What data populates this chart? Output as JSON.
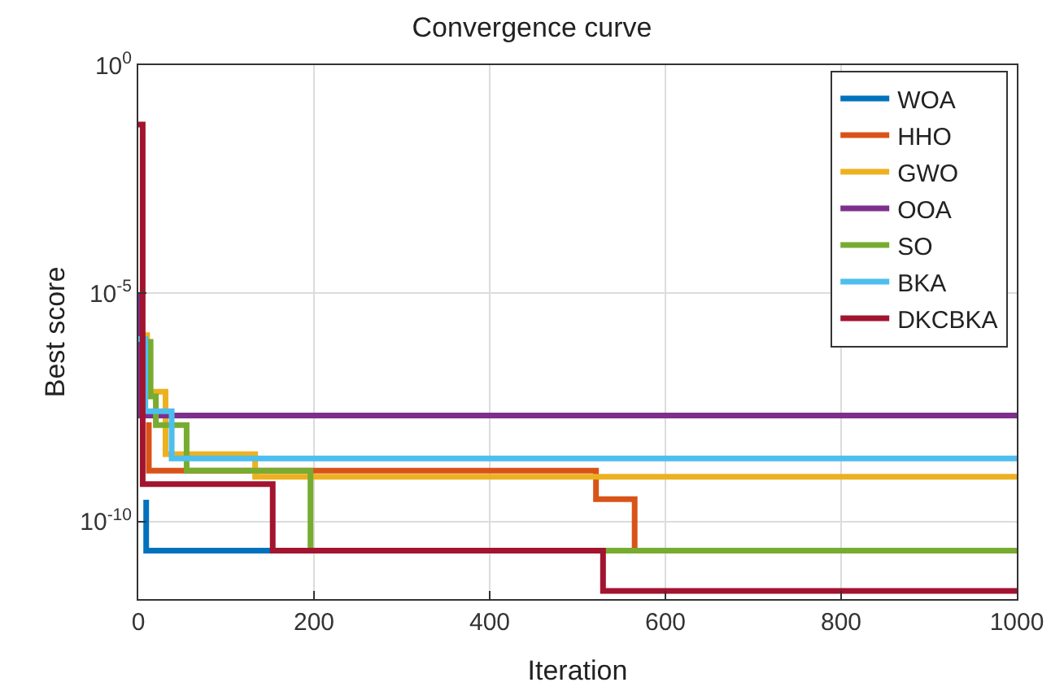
{
  "chart_data": {
    "type": "step",
    "title": "Convergence curve",
    "xlabel": "Iteration",
    "ylabel": "Best score",
    "log": "y",
    "grid": true,
    "legend": "top right",
    "line_style": "solid",
    "marker": "none",
    "xlim": [
      0,
      1000
    ],
    "xticks": [
      0,
      200,
      400,
      600,
      800,
      1000
    ],
    "ylim": [
      2e-12,
      1
    ],
    "yticks": [
      {
        "value": 1,
        "label": "10$^{0}$"
      },
      {
        "value": 1e-05,
        "label": "10$^{-5}$"
      },
      {
        "value": 1e-10,
        "label": "10$^{-10}$"
      }
    ],
    "series": [
      {
        "name": "WOA",
        "color": "#0072bd",
        "x": [
          9,
          9,
          153
        ],
        "values": [
          3e-10,
          2.3e-11,
          2.3e-11
        ]
      },
      {
        "name": "HHO",
        "color": "#d95319",
        "x": [
          12,
          12,
          521,
          565,
          565
        ],
        "values": [
          1.5e-08,
          1.3e-09,
          3.1e-10,
          3.1e-10,
          2.3e-11
        ]
      },
      {
        "name": "GWO",
        "color": "#edb120",
        "x": [
          10,
          10,
          31,
          133,
          1000
        ],
        "values": [
          1.4e-06,
          7e-08,
          3e-09,
          9.6e-10,
          9.6e-10
        ]
      },
      {
        "name": "OOA",
        "color": "#7e2f8e",
        "x": [
          3,
          3,
          1000
        ],
        "values": [
          1e-05,
          2.1e-08,
          2.1e-08
        ]
      },
      {
        "name": "SO",
        "color": "#77ac30",
        "x": [
          14,
          14,
          20,
          55,
          196,
          1000
        ],
        "values": [
          1e-06,
          5.5e-08,
          1.3e-08,
          1.3e-09,
          2.3e-11,
          2.3e-11
        ]
      },
      {
        "name": "BKA",
        "color": "#4dbeee",
        "x": [
          0,
          8,
          38,
          1000
        ],
        "values": [
          1e-06,
          2.6e-08,
          2.4e-09,
          2.4e-09
        ]
      },
      {
        "name": "DKCBKA",
        "color": "#a2142f",
        "x": [
          0,
          5,
          153,
          529,
          1000
        ],
        "values": [
          0.05,
          6.6e-10,
          2.3e-11,
          3e-12,
          3e-12
        ]
      }
    ]
  }
}
